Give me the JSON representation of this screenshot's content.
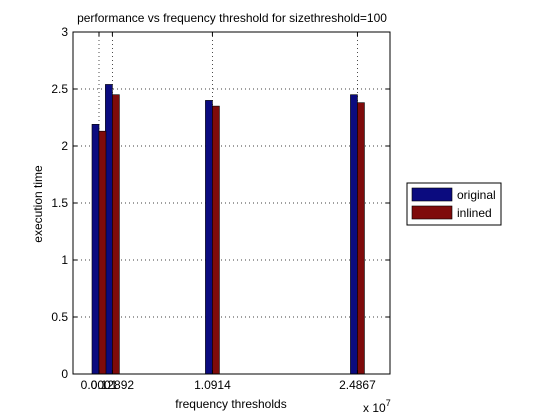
{
  "chart_data": {
    "type": "bar",
    "title": "performance vs frequency threshold for sizethreshold=100",
    "xlabel": "frequency thresholds",
    "ylabel": "execution time",
    "x_exponent_base": "x 10",
    "x_exponent_power": "7",
    "x": [
      0.0001,
      0.12892,
      1.0914,
      2.4867
    ],
    "categories": [
      "0.0001",
      "0.12892",
      "1.0914",
      "2.4867"
    ],
    "series": [
      {
        "name": "original",
        "values": [
          2.19,
          2.54,
          2.4,
          2.45
        ],
        "color": "#0b0b7f"
      },
      {
        "name": "inlined",
        "values": [
          2.13,
          2.45,
          2.35,
          2.38
        ],
        "color": "#7f0b0b"
      }
    ],
    "ylim": [
      0,
      3
    ],
    "yticks": [
      0,
      0.5,
      1,
      1.5,
      2,
      2.5,
      3
    ],
    "ytick_labels": [
      "0",
      "0.5",
      "1",
      "1.5",
      "2",
      "2.5",
      "3"
    ],
    "xlim": [
      -0.25,
      2.8
    ],
    "grid": true,
    "legend_position": "right"
  }
}
